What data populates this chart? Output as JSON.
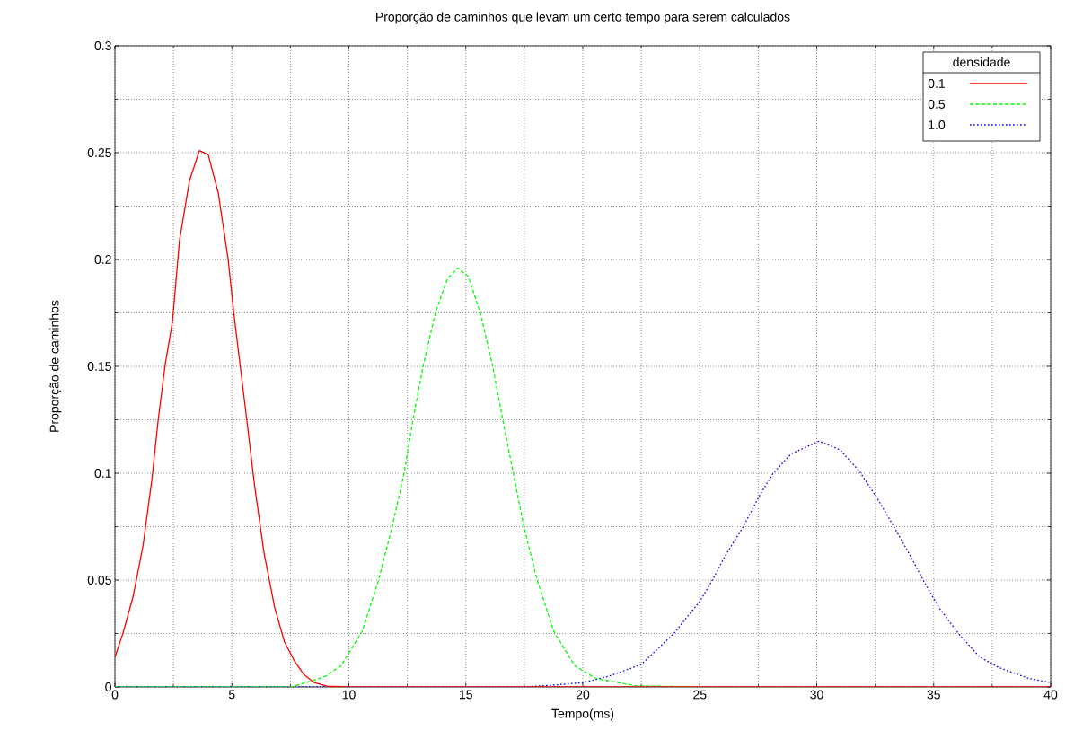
{
  "chart_data": {
    "type": "line",
    "title": "Proporção de caminhos que levam um certo tempo para serem calculados",
    "xlabel": "Tempo(ms)",
    "ylabel": "Proporção de caminhos",
    "legend_title": "densidade",
    "xlim": [
      0,
      40
    ],
    "ylim": [
      0,
      0.3
    ],
    "xticks": [
      0,
      5,
      10,
      15,
      20,
      25,
      30,
      35,
      40
    ],
    "yticks": [
      0,
      0.05,
      0.1,
      0.15,
      0.2,
      0.25,
      0.3
    ],
    "grid": true,
    "legend": "top right",
    "marker": "none",
    "series": [
      {
        "name": "0.1",
        "color": "#ff0000",
        "line_style": "solid",
        "x": [
          0,
          0.34,
          0.77,
          1.2,
          1.58,
          1.84,
          2.15,
          2.46,
          2.76,
          3.19,
          3.61,
          3.99,
          4.42,
          4.84,
          5.07,
          5.37,
          5.68,
          5.96,
          6.37,
          6.83,
          7.25,
          7.68,
          8.06,
          8.52,
          9.06,
          10,
          20,
          30,
          40
        ],
        "values": [
          0.014,
          0.025,
          0.042,
          0.066,
          0.097,
          0.124,
          0.151,
          0.171,
          0.209,
          0.237,
          0.251,
          0.249,
          0.231,
          0.2,
          0.176,
          0.149,
          0.121,
          0.095,
          0.063,
          0.037,
          0.021,
          0.012,
          0.006,
          0.002,
          0.0004,
          0,
          0,
          0,
          0
        ]
      },
      {
        "name": "0.5",
        "color": "#00ff00",
        "line_style": "dashed",
        "x": [
          0,
          5,
          7.5,
          8.5,
          9.0,
          9.67,
          10.57,
          11.27,
          11.85,
          12.36,
          12.74,
          13.19,
          13.7,
          14.21,
          14.66,
          15.11,
          15.62,
          16.13,
          16.58,
          17.03,
          17.48,
          18.05,
          18.76,
          19.65,
          20.55,
          21.83,
          22.3,
          25
        ],
        "values": [
          0,
          0,
          0,
          0.003,
          0.005,
          0.01,
          0.026,
          0.05,
          0.075,
          0.1,
          0.125,
          0.151,
          0.175,
          0.191,
          0.196,
          0.192,
          0.175,
          0.151,
          0.125,
          0.1,
          0.075,
          0.05,
          0.026,
          0.01,
          0.004,
          0.0014,
          0.0005,
          0
        ]
      },
      {
        "name": "1.0",
        "color": "#0000ff",
        "line_style": "dotted",
        "x": [
          0,
          10,
          17.5,
          18.9,
          20,
          21.11,
          22.5,
          23.89,
          25,
          25.49,
          26.12,
          26.81,
          27.58,
          28.14,
          28.9,
          30.1,
          30.99,
          31.82,
          32.66,
          33.35,
          33.97,
          34.6,
          35.23,
          36.13,
          36.97,
          37.8,
          39.06,
          40
        ],
        "values": [
          0,
          0,
          0,
          0.001,
          0.002,
          0.005,
          0.0105,
          0.025,
          0.04,
          0.049,
          0.062,
          0.074,
          0.09,
          0.1,
          0.109,
          0.115,
          0.111,
          0.101,
          0.087,
          0.074,
          0.062,
          0.049,
          0.037,
          0.024,
          0.014,
          0.009,
          0.004,
          0.002
        ]
      }
    ]
  }
}
